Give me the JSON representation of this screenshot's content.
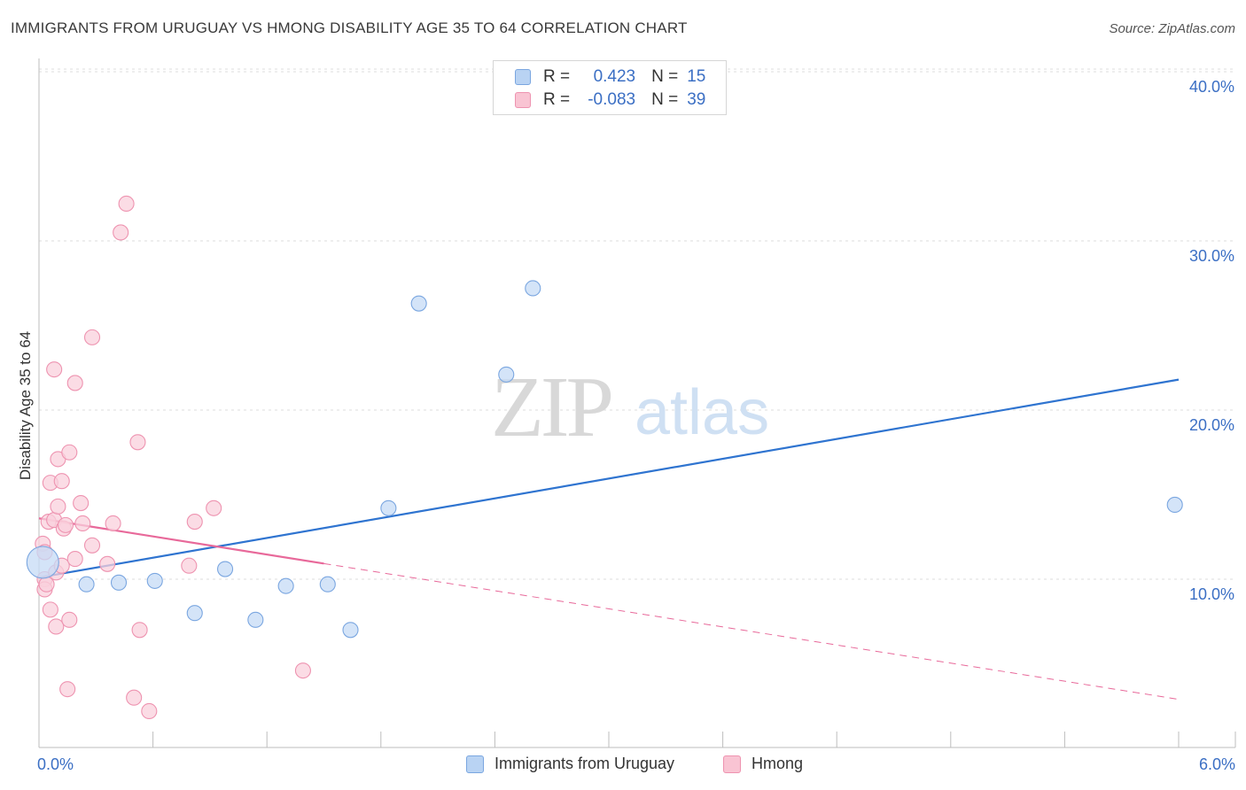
{
  "title": "IMMIGRANTS FROM URUGUAY VS HMONG DISABILITY AGE 35 TO 64 CORRELATION CHART",
  "source": "Source: ZipAtlas.com",
  "watermark": {
    "zip": "ZIP",
    "atlas": "atlas"
  },
  "legend": {
    "r_label": "R =",
    "n_label": "N =",
    "rows": [
      {
        "r": "0.423",
        "n": "15",
        "fill": "#b9d3f3",
        "stroke": "#7aa6e0"
      },
      {
        "r": "-0.083",
        "n": "39",
        "fill": "#f9c4d3",
        "stroke": "#ee93b0"
      }
    ]
  },
  "bottom_legend": [
    {
      "name": "Immigrants from Uruguay",
      "fill": "#b9d3f3",
      "stroke": "#7aa6e0"
    },
    {
      "name": "Hmong",
      "fill": "#f9c4d3",
      "stroke": "#ee93b0"
    }
  ],
  "chart_data": {
    "type": "scatter",
    "title": "IMMIGRANTS FROM URUGUAY VS HMONG DISABILITY AGE 35 TO 64 CORRELATION CHART",
    "xlabel": "",
    "ylabel": "Disability Age 35 to 64",
    "xlim": [
      0,
      6
    ],
    "ylim": [
      0,
      42
    ],
    "x_tick_labels": [
      {
        "value": 0,
        "label": "0.0%"
      },
      {
        "value": 6,
        "label": "6.0%"
      }
    ],
    "y_tick_labels": [
      {
        "value": 10,
        "label": "10.0%"
      },
      {
        "value": 20,
        "label": "20.0%"
      },
      {
        "value": 30,
        "label": "30.0%"
      },
      {
        "value": 40,
        "label": "40.0%"
      }
    ],
    "grid": true,
    "series": [
      {
        "name": "Immigrants from Uruguay",
        "color": "#7aa6e0",
        "fill": "#c6dbf5",
        "line_color": "#2f74d0",
        "points": [
          [
            0.02,
            11.0
          ],
          [
            0.25,
            9.7
          ],
          [
            0.42,
            9.8
          ],
          [
            0.61,
            9.9
          ],
          [
            0.82,
            8.0
          ],
          [
            0.98,
            10.6
          ],
          [
            1.14,
            7.6
          ],
          [
            1.3,
            9.6
          ],
          [
            1.52,
            9.7
          ],
          [
            1.64,
            7.0
          ],
          [
            1.84,
            14.2
          ],
          [
            2.0,
            26.3
          ],
          [
            2.46,
            22.1
          ],
          [
            2.6,
            27.2
          ],
          [
            5.98,
            14.4
          ]
        ],
        "trend": {
          "x": [
            0,
            6
          ],
          "y": [
            10.1,
            21.8
          ],
          "dashed_after": null
        }
      },
      {
        "name": "Hmong",
        "color": "#ee93b0",
        "fill": "#fad0dc",
        "line_color": "#e8699a",
        "points": [
          [
            0.02,
            12.1
          ],
          [
            0.03,
            11.6
          ],
          [
            0.03,
            10.0
          ],
          [
            0.03,
            9.4
          ],
          [
            0.04,
            9.7
          ],
          [
            0.05,
            13.4
          ],
          [
            0.06,
            8.2
          ],
          [
            0.06,
            15.7
          ],
          [
            0.08,
            13.5
          ],
          [
            0.08,
            22.4
          ],
          [
            0.09,
            7.2
          ],
          [
            0.09,
            10.4
          ],
          [
            0.1,
            17.1
          ],
          [
            0.1,
            14.3
          ],
          [
            0.12,
            10.8
          ],
          [
            0.12,
            15.8
          ],
          [
            0.13,
            13.0
          ],
          [
            0.14,
            13.2
          ],
          [
            0.15,
            3.5
          ],
          [
            0.16,
            7.6
          ],
          [
            0.16,
            17.5
          ],
          [
            0.19,
            11.2
          ],
          [
            0.19,
            21.6
          ],
          [
            0.22,
            14.5
          ],
          [
            0.23,
            13.3
          ],
          [
            0.28,
            12.0
          ],
          [
            0.28,
            24.3
          ],
          [
            0.36,
            10.9
          ],
          [
            0.39,
            13.3
          ],
          [
            0.43,
            30.5
          ],
          [
            0.46,
            32.2
          ],
          [
            0.5,
            3.0
          ],
          [
            0.52,
            18.1
          ],
          [
            0.53,
            7.0
          ],
          [
            0.58,
            2.2
          ],
          [
            0.79,
            10.8
          ],
          [
            0.82,
            13.4
          ],
          [
            0.92,
            14.2
          ],
          [
            1.39,
            4.6
          ]
        ],
        "trend": {
          "x": [
            0,
            6
          ],
          "y": [
            13.6,
            2.9
          ],
          "solid_until_x": 1.5
        }
      }
    ]
  }
}
